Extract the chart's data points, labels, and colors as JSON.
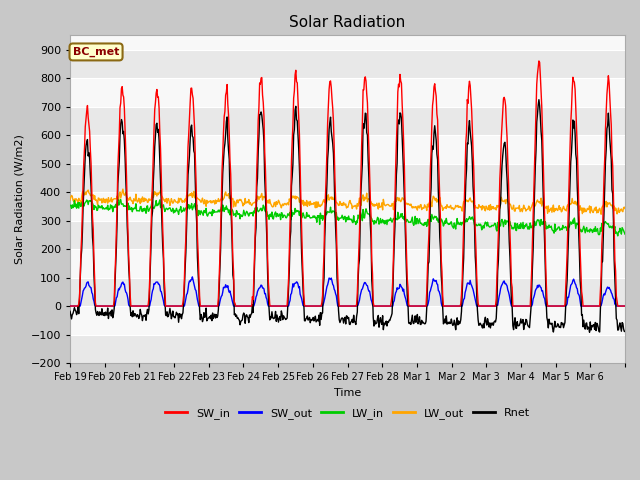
{
  "title": "Solar Radiation",
  "xlabel": "Time",
  "ylabel": "Solar Radiation (W/m2)",
  "ylim": [
    -200,
    950
  ],
  "yticks": [
    -200,
    -100,
    0,
    100,
    200,
    300,
    400,
    500,
    600,
    700,
    800,
    900
  ],
  "date_labels": [
    "Feb 19",
    "Feb 20",
    "Feb 21",
    "Feb 22",
    "Feb 23",
    "Feb 24",
    "Feb 25",
    "Feb 26",
    "Feb 27",
    "Feb 28",
    "Mar 1",
    "Mar 2",
    "Mar 3",
    "Mar 4",
    "Mar 5",
    "Mar 6"
  ],
  "colors": {
    "SW_in": "#ff0000",
    "SW_out": "#0000ff",
    "LW_in": "#00cc00",
    "LW_out": "#ffa500",
    "Rnet": "#000000"
  },
  "legend_label": "BC_met",
  "fig_bg_color": "#c8c8c8",
  "plot_bg_color": "#f0f0f0",
  "band_color_dark": "#e0e0e0",
  "band_color_light": "#f8f8f8"
}
